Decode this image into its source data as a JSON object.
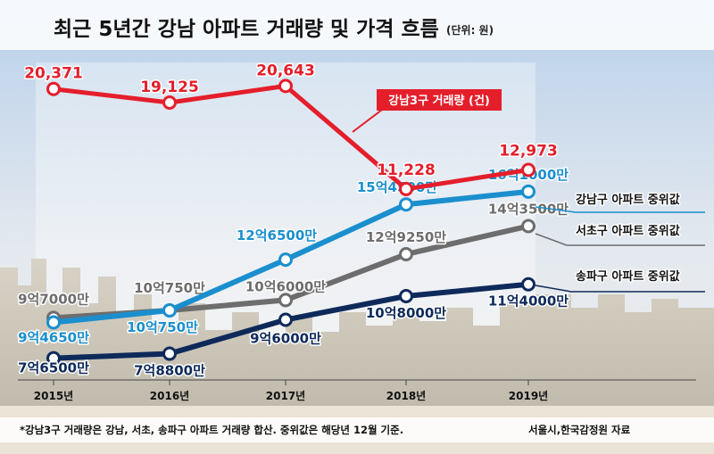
{
  "title": "최근 5년간 강남 아파트 거래량 및 가격 흐름",
  "unit": "(단위: 원)",
  "footnote": "*강남3구 거래량은 강남, 서초, 송파구 아파트 거래량 합산. 중위값은 해당년 12월 기준.",
  "source": "서울시,한국감정원 자료",
  "colors": {
    "red": "#e41e2b",
    "blue": "#1b8fce",
    "gray": "#6d6d6d",
    "navy": "#0e2a5a",
    "sky_top": "#bcd3ea",
    "sky_bottom": "#eef1f3",
    "city": "#d9d4c8"
  },
  "chart_data": {
    "type": "line",
    "x": [
      "2015년",
      "2016년",
      "2017년",
      "2018년",
      "2019년"
    ],
    "series": [
      {
        "key": "transactions",
        "name": "강남3구 거래량 (건)",
        "values": [
          20371,
          19125,
          20643,
          11228,
          12973
        ],
        "labels": [
          "20,371",
          "19,125",
          "20,643",
          "11,228",
          "12,973"
        ]
      },
      {
        "key": "gangnam",
        "name": "강남구 아파트 중위값",
        "values": [
          946500000,
          1007500000,
          1265000000,
          1545000000,
          1610000000
        ],
        "labels": [
          "9억4650만",
          "10억750만",
          "12억6500만",
          "15억4500만",
          "16억1000만"
        ]
      },
      {
        "key": "seocho",
        "name": "서초구 아파트 중위값",
        "values": [
          970000000,
          1007500000,
          1060000000,
          1292500000,
          1435000000
        ],
        "labels": [
          "9억7000만",
          "10억750만",
          "10억6000만",
          "12억9250만",
          "14억3500만"
        ]
      },
      {
        "key": "songpa",
        "name": "송파구 아파트 중위값",
        "values": [
          765000000,
          788000000,
          960000000,
          1080000000,
          1140000000
        ],
        "labels": [
          "7억6500만",
          "7억8800만",
          "9억6000만",
          "10억8000만",
          "11억4000만"
        ]
      }
    ]
  }
}
